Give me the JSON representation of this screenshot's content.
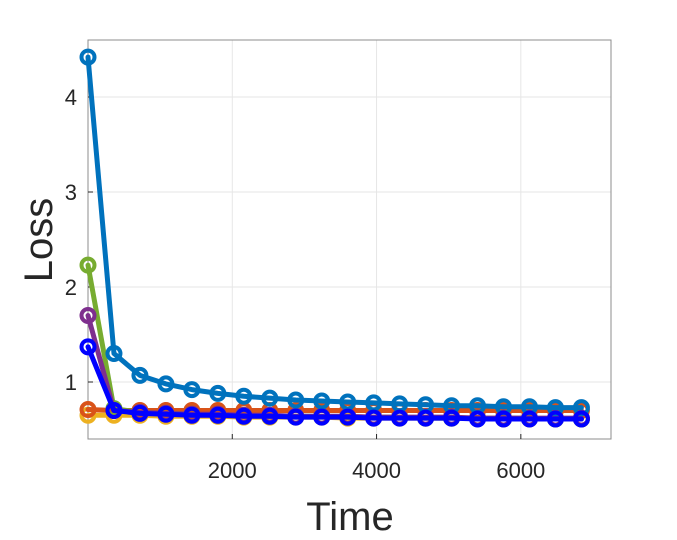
{
  "chart_data": {
    "type": "line",
    "xlabel": "Time",
    "ylabel": "Loss",
    "xlim": [
      0,
      7250
    ],
    "ylim": [
      0.4,
      4.6
    ],
    "xticks": [
      2000,
      4000,
      6000
    ],
    "yticks": [
      1,
      2,
      3,
      4
    ],
    "grid": true,
    "marker": "circle",
    "x": [
      0,
      360,
      720,
      1080,
      1440,
      1800,
      2160,
      2520,
      2880,
      3240,
      3600,
      3960,
      4320,
      4680,
      5040,
      5400,
      5760,
      6120,
      6480,
      6840
    ],
    "series": [
      {
        "color": "#0072BD",
        "values": [
          4.42,
          1.3,
          1.07,
          0.98,
          0.92,
          0.88,
          0.85,
          0.83,
          0.81,
          0.8,
          0.79,
          0.78,
          0.77,
          0.76,
          0.75,
          0.75,
          0.74,
          0.74,
          0.73,
          0.73
        ]
      },
      {
        "color": "#D95319",
        "values": [
          0.71,
          0.7,
          0.7,
          0.7,
          0.7,
          0.7,
          0.7,
          0.7,
          0.7,
          0.7,
          0.7,
          0.7,
          0.7,
          0.7,
          0.7,
          0.7,
          0.7,
          0.7,
          0.7,
          0.7
        ]
      },
      {
        "color": "#EDB120",
        "values": [
          0.65,
          0.65,
          0.65,
          0.64,
          0.64,
          0.64,
          0.63,
          0.63,
          0.63,
          0.63,
          0.62,
          0.62,
          0.62,
          0.62,
          0.62,
          0.62,
          0.61,
          0.61,
          0.61,
          0.61
        ]
      },
      {
        "color": "#7E2F8E",
        "values": [
          1.7,
          0.7,
          0.68,
          0.67,
          0.66,
          0.66,
          0.65,
          0.65,
          0.64,
          0.64,
          0.64,
          0.63,
          0.63,
          0.63,
          0.63,
          0.62,
          0.62,
          0.62,
          0.62,
          0.62
        ]
      },
      {
        "color": "#77AC30",
        "values": [
          2.23,
          0.72,
          0.68,
          0.67,
          0.66,
          0.65,
          0.65,
          0.64,
          0.64,
          0.64,
          0.63,
          0.63,
          0.63,
          0.62,
          0.62,
          0.62,
          0.62,
          0.62,
          0.61,
          0.61
        ]
      },
      {
        "color": "#0000FF",
        "values": [
          1.37,
          0.7,
          0.67,
          0.66,
          0.65,
          0.65,
          0.64,
          0.64,
          0.63,
          0.63,
          0.63,
          0.62,
          0.62,
          0.62,
          0.62,
          0.61,
          0.61,
          0.61,
          0.61,
          0.61
        ]
      }
    ]
  }
}
